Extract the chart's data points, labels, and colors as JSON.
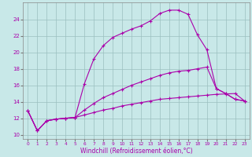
{
  "xlabel": "Windchill (Refroidissement éolien,°C)",
  "bg_color": "#c8e8e8",
  "line_color": "#aa00aa",
  "xlim": [
    -0.5,
    23.5
  ],
  "ylim": [
    9.5,
    26.0
  ],
  "yticks": [
    10,
    12,
    14,
    16,
    18,
    20,
    22,
    24
  ],
  "xticks": [
    0,
    1,
    2,
    3,
    4,
    5,
    6,
    7,
    8,
    9,
    10,
    11,
    12,
    13,
    14,
    15,
    16,
    17,
    18,
    19,
    20,
    21,
    22,
    23
  ],
  "line1_x": [
    0,
    1,
    2,
    3,
    4,
    5,
    6,
    7,
    8,
    9,
    10,
    11,
    12,
    13,
    14,
    15,
    16,
    17,
    18,
    19,
    20,
    21,
    22,
    23
  ],
  "line1_y": [
    12.9,
    10.5,
    11.7,
    11.9,
    12.0,
    12.1,
    16.2,
    19.2,
    20.8,
    21.8,
    22.3,
    22.8,
    23.2,
    23.8,
    24.7,
    25.1,
    25.1,
    24.6,
    22.1,
    20.3,
    15.6,
    15.0,
    14.3,
    14.1
  ],
  "line2_x": [
    0,
    1,
    2,
    3,
    4,
    5,
    6,
    7,
    8,
    9,
    10,
    11,
    12,
    13,
    14,
    15,
    16,
    17,
    18,
    19,
    20,
    21,
    22,
    23
  ],
  "line2_y": [
    12.9,
    10.5,
    11.7,
    11.9,
    12.0,
    12.1,
    13.0,
    13.8,
    14.5,
    15.0,
    15.5,
    16.0,
    16.4,
    16.8,
    17.2,
    17.5,
    17.7,
    17.8,
    18.0,
    18.2,
    15.6,
    15.0,
    14.3,
    14.1
  ],
  "line3_x": [
    0,
    1,
    2,
    3,
    4,
    5,
    6,
    7,
    8,
    9,
    10,
    11,
    12,
    13,
    14,
    15,
    16,
    17,
    18,
    19,
    20,
    21,
    22,
    23
  ],
  "line3_y": [
    12.9,
    10.5,
    11.7,
    11.9,
    12.0,
    12.1,
    12.4,
    12.7,
    13.0,
    13.2,
    13.5,
    13.7,
    13.9,
    14.1,
    14.3,
    14.4,
    14.5,
    14.6,
    14.7,
    14.8,
    14.9,
    14.95,
    15.0,
    14.1
  ]
}
